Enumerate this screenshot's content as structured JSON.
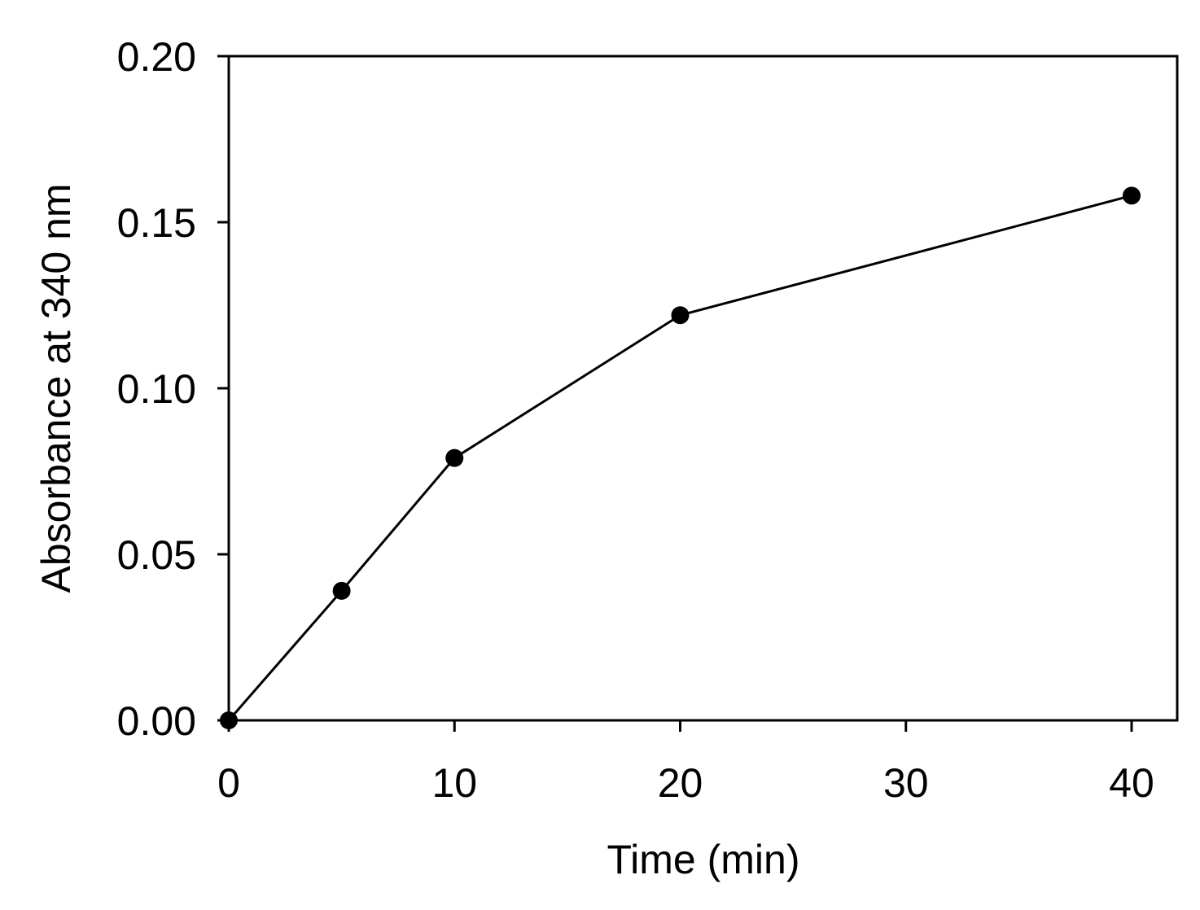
{
  "chart_data": {
    "type": "line",
    "title": "",
    "xlabel": "Time (min)",
    "ylabel": "Absorbance at 340 nm",
    "xlim": [
      0,
      42
    ],
    "ylim": [
      0,
      0.2
    ],
    "x_ticks": [
      {
        "value": 0,
        "label": "0"
      },
      {
        "value": 10,
        "label": "10"
      },
      {
        "value": 20,
        "label": "20"
      },
      {
        "value": 30,
        "label": "30"
      },
      {
        "value": 40,
        "label": "40"
      }
    ],
    "y_ticks": [
      {
        "value": 0,
        "label": "0.00"
      },
      {
        "value": 0.05,
        "label": "0.05"
      },
      {
        "value": 0.1,
        "label": "0.10"
      },
      {
        "value": 0.15,
        "label": "0.15"
      },
      {
        "value": 0.2,
        "label": "0.20"
      }
    ],
    "series": [
      {
        "x": [
          0,
          5,
          10,
          20,
          40
        ],
        "y": [
          0.0,
          0.039,
          0.079,
          0.122,
          0.158
        ]
      }
    ],
    "grid": false,
    "legend": "none",
    "colors": {
      "line": "#000000",
      "marker": "#000000",
      "axis": "#000000"
    }
  }
}
